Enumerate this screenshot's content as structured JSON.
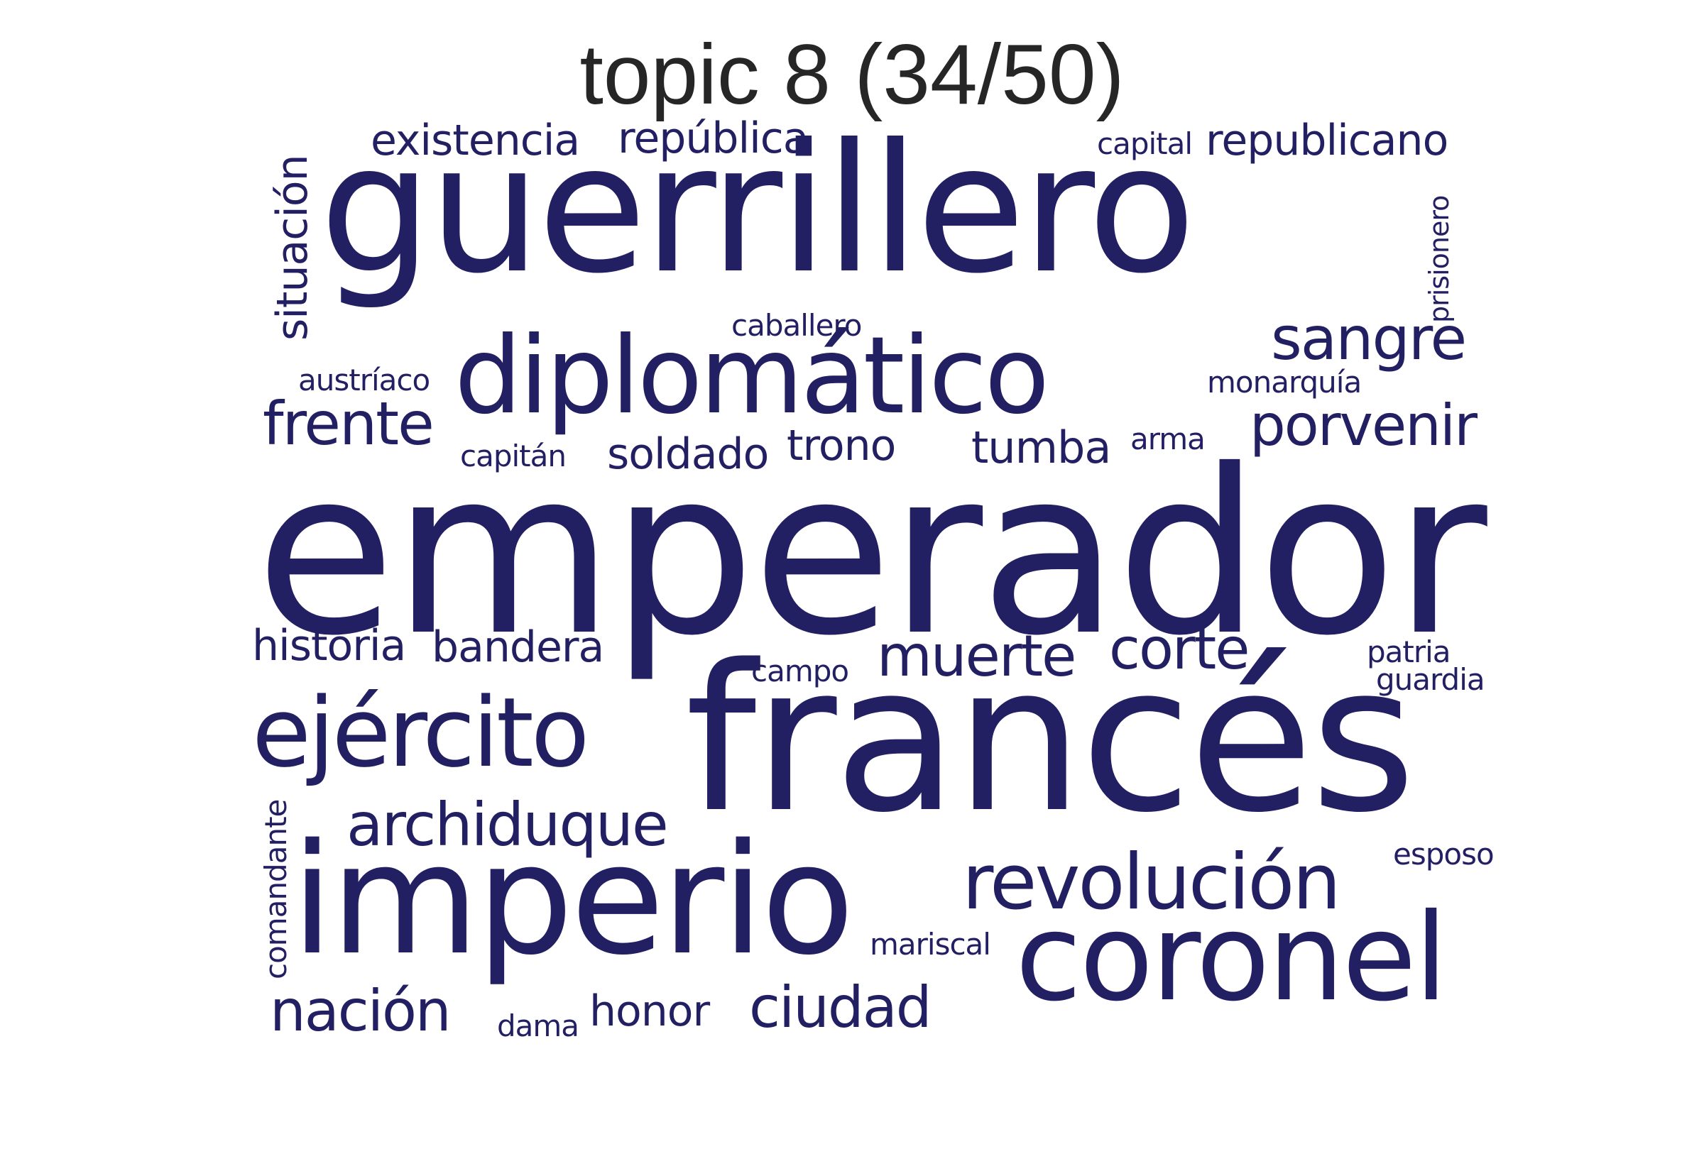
{
  "title": "topic 8 (34/50)",
  "colors": {
    "word": "#231f63",
    "title": "#262626",
    "background": "#ffffff"
  },
  "words": {
    "emperador": "emperador",
    "frances": "francés",
    "guerrillero": "guerrillero",
    "imperio": "imperio",
    "diplomatico": "diplomático",
    "coronel": "coronel",
    "ejercito": "ejército",
    "revolucion": "revolución",
    "archiduque": "archiduque",
    "sangre": "sangre",
    "frente": "frente",
    "porvenir": "porvenir",
    "muerte": "muerte",
    "corte": "corte",
    "nacion": "nación",
    "ciudad": "ciudad",
    "existencia": "existencia",
    "republica": "república",
    "republicano": "republicano",
    "situacion": "situación",
    "tumba": "tumba",
    "soldado": "soldado",
    "trono": "trono",
    "historia": "historia",
    "bandera": "bandera",
    "honor": "honor",
    "capital": "capital",
    "prisionero": "prisionero",
    "caballero": "caballero",
    "austriaco": "austríaco",
    "monarquia": "monarquía",
    "capitan": "capitán",
    "arma": "arma",
    "campo": "campo",
    "patria": "patria",
    "guardia": "guardia",
    "esposo": "esposo",
    "comandante": "comandante",
    "mariscal": "mariscal",
    "dama": "dama"
  }
}
